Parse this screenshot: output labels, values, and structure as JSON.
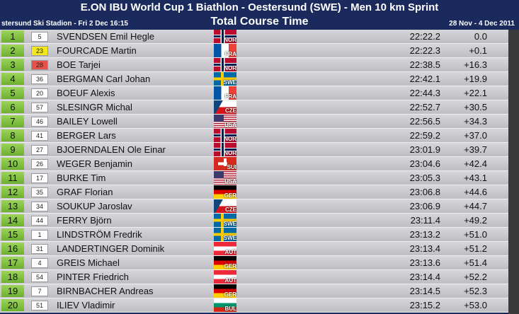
{
  "header": {
    "title": "E.ON IBU World Cup 1 Biathlon - Oestersund (SWE) - Men 10 km Sprint",
    "venue": "stersund Ski Stadion  -  Fri 2 Dec 16:15",
    "subtitle": "Total Course Time",
    "dates": "28 Nov - 4 Dec 2011"
  },
  "table": {
    "rows": [
      {
        "rank": "1",
        "bib": "5",
        "name": "SVENDSEN Emil Hegle",
        "nation": "NOR",
        "time": "22:22.2",
        "behind": "0.0"
      },
      {
        "rank": "2",
        "bib": "23",
        "bib_color": "#f4e81c",
        "name": "FOURCADE Martin",
        "nation": "FRA",
        "time": "22:22.3",
        "behind": "+0.1"
      },
      {
        "rank": "3",
        "bib": "28",
        "bib_color": "#e8504a",
        "name": "BOE Tarjei",
        "nation": "NOR",
        "time": "22:38.5",
        "behind": "+16.3"
      },
      {
        "rank": "4",
        "bib": "36",
        "name": "BERGMAN Carl Johan",
        "nation": "SWE",
        "time": "22:42.1",
        "behind": "+19.9"
      },
      {
        "rank": "5",
        "bib": "20",
        "name": "BOEUF Alexis",
        "nation": "FRA",
        "time": "22:44.3",
        "behind": "+22.1"
      },
      {
        "rank": "6",
        "bib": "57",
        "name": "SLESINGR Michal",
        "nation": "CZE",
        "time": "22:52.7",
        "behind": "+30.5"
      },
      {
        "rank": "7",
        "bib": "46",
        "name": "BAILEY Lowell",
        "nation": "USA",
        "time": "22:56.5",
        "behind": "+34.3"
      },
      {
        "rank": "8",
        "bib": "41",
        "name": "BERGER Lars",
        "nation": "NOR",
        "time": "22:59.2",
        "behind": "+37.0"
      },
      {
        "rank": "9",
        "bib": "27",
        "name": "BJOERNDALEN Ole Einar",
        "nation": "NOR",
        "time": "23:01.9",
        "behind": "+39.7"
      },
      {
        "rank": "10",
        "bib": "26",
        "name": "WEGER Benjamin",
        "nation": "SUI",
        "time": "23:04.6",
        "behind": "+42.4"
      },
      {
        "rank": "11",
        "bib": "17",
        "name": "BURKE Tim",
        "nation": "USA",
        "time": "23:05.3",
        "behind": "+43.1"
      },
      {
        "rank": "12",
        "bib": "35",
        "name": "GRAF Florian",
        "nation": "GER",
        "time": "23:06.8",
        "behind": "+44.6"
      },
      {
        "rank": "13",
        "bib": "34",
        "name": "SOUKUP Jaroslav",
        "nation": "CZE",
        "time": "23:06.9",
        "behind": "+44.7"
      },
      {
        "rank": "14",
        "bib": "44",
        "name": "FERRY Björn",
        "nation": "SWE",
        "time": "23:11.4",
        "behind": "+49.2"
      },
      {
        "rank": "15",
        "bib": "1",
        "name": "LINDSTRÖM Fredrik",
        "nation": "SWE",
        "time": "23:13.2",
        "behind": "+51.0"
      },
      {
        "rank": "16",
        "bib": "31",
        "name": "LANDERTINGER Dominik",
        "nation": "AUT",
        "time": "23:13.4",
        "behind": "+51.2"
      },
      {
        "rank": "17",
        "bib": "4",
        "name": "GREIS Michael",
        "nation": "GER",
        "time": "23:13.6",
        "behind": "+51.4"
      },
      {
        "rank": "18",
        "bib": "54",
        "name": "PINTER Friedrich",
        "nation": "AUT",
        "time": "23:14.4",
        "behind": "+52.2"
      },
      {
        "rank": "19",
        "bib": "7",
        "name": "BIRNBACHER Andreas",
        "nation": "GER",
        "time": "23:14.5",
        "behind": "+52.3"
      },
      {
        "rank": "20",
        "bib": "51",
        "name": "ILIEV Vladimir",
        "nation": "BUL",
        "time": "23:15.2",
        "behind": "+53.0"
      }
    ]
  }
}
